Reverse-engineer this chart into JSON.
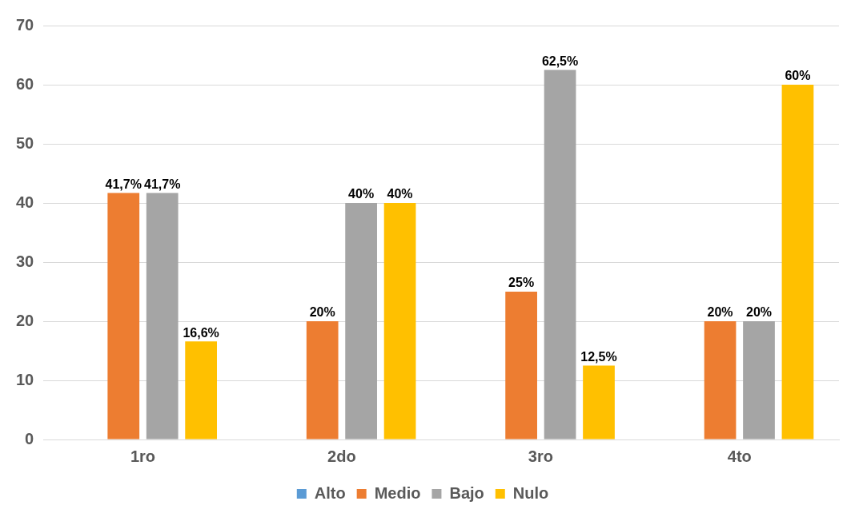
{
  "chart_data": {
    "type": "bar",
    "categories": [
      "1ro",
      "2do",
      "3ro",
      "4to"
    ],
    "series": [
      {
        "name": "Alto",
        "color": "#5b9bd5",
        "values": [
          null,
          null,
          null,
          null
        ]
      },
      {
        "name": "Medio",
        "color": "#ed7d31",
        "values": [
          41.7,
          20,
          25,
          20
        ],
        "value_labels": [
          "41,7%",
          "20%",
          "25%",
          "20%"
        ]
      },
      {
        "name": "Bajo",
        "color": "#a5a5a5",
        "values": [
          41.7,
          40,
          62.5,
          20
        ],
        "value_labels": [
          "41,7%",
          "40%",
          "62,5%",
          "20%"
        ]
      },
      {
        "name": "Nulo",
        "color": "#ffc000",
        "values": [
          16.6,
          40,
          12.5,
          60
        ],
        "value_labels": [
          "16,6%",
          "40%",
          "12,5%",
          "60%"
        ]
      }
    ],
    "ylim": [
      0,
      70
    ],
    "yticks": [
      0,
      10,
      20,
      30,
      40,
      50,
      60,
      70
    ],
    "grid": "y",
    "legend": "bottom"
  }
}
